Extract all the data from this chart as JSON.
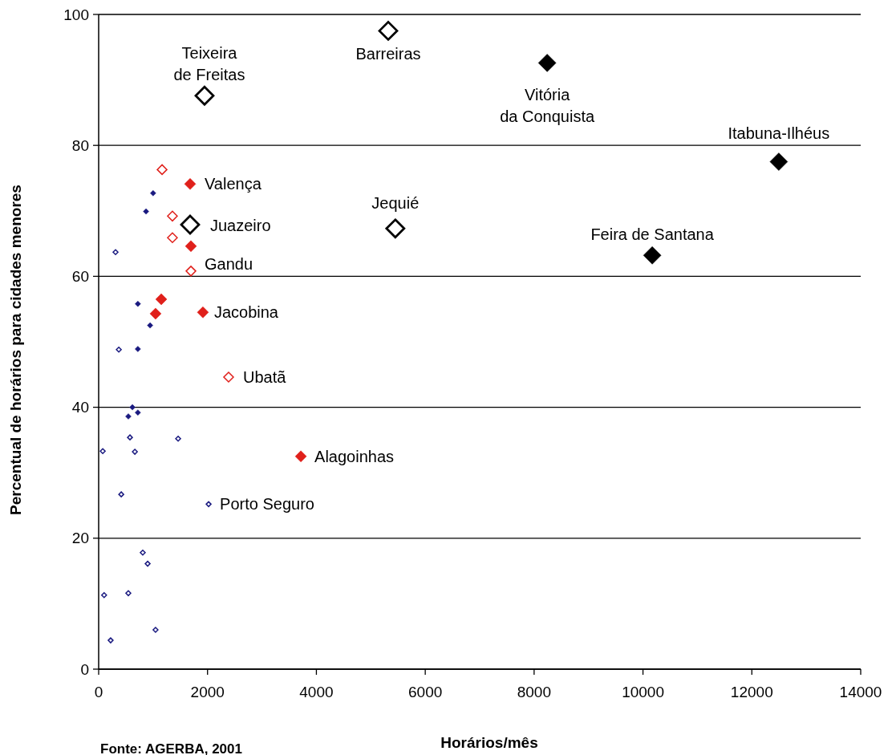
{
  "chart_data": {
    "type": "scatter",
    "xlabel": "Horários/mês",
    "ylabel": "Percentual de horários para cidades menores",
    "xlim": [
      0,
      14000
    ],
    "xticks": [
      0,
      2000,
      4000,
      6000,
      8000,
      10000,
      12000,
      14000
    ],
    "ylim": [
      0,
      100
    ],
    "yticks": [
      0,
      20,
      40,
      60,
      80,
      100
    ],
    "grid": "y",
    "marker": "diamond",
    "series": [
      {
        "color": "#000000",
        "x": [
          1945,
          5320,
          1680,
          5450
        ],
        "values": [
          87.6,
          97.5,
          67.9,
          67.3
        ]
      },
      {
        "color": "#000000",
        "x": [
          8240,
          12495,
          10170
        ],
        "values": [
          92.6,
          77.5,
          63.2
        ]
      },
      {
        "color": "#e0201b",
        "x": [
          1680,
          1695,
          1150,
          1045,
          1915,
          3715
        ],
        "values": [
          74.1,
          64.6,
          56.5,
          54.3,
          54.5,
          32.5
        ]
      },
      {
        "color": "#e0201b",
        "x": [
          1165,
          1355,
          1355,
          1695,
          2387
        ],
        "values": [
          76.3,
          69.2,
          65.9,
          60.8,
          44.6
        ]
      },
      {
        "color": "#1a1a80",
        "x": [
          1000,
          870,
          720,
          945,
          720,
          620,
          545,
          720
        ],
        "values": [
          72.7,
          69.9,
          55.8,
          52.5,
          48.9,
          40.0,
          38.6,
          39.2
        ]
      },
      {
        "color": "#1a1a80",
        "x": [
          310,
          370,
          575,
          1460,
          75,
          665,
          415,
          2020,
          810,
          900,
          100,
          545,
          220,
          1045
        ],
        "values": [
          63.7,
          48.8,
          35.4,
          35.2,
          33.3,
          33.2,
          26.7,
          25.2,
          17.8,
          16.1,
          11.3,
          11.6,
          4.4,
          6.0
        ]
      }
    ],
    "annotations": [
      {
        "text": "Teixeira\nde Freitas",
        "x": 1945,
        "y": 87.6
      },
      {
        "text": "Barreiras",
        "x": 5320,
        "y": 97.5
      },
      {
        "text": "Vitória\nda Conquista",
        "x": 8240,
        "y": 92.6
      },
      {
        "text": "Itabuna-Ilhéus",
        "x": 12495,
        "y": 77.5
      },
      {
        "text": "Valença",
        "x": 1680,
        "y": 74.1
      },
      {
        "text": "Juazeiro",
        "x": 1680,
        "y": 67.9
      },
      {
        "text": "Jequié",
        "x": 5450,
        "y": 67.3
      },
      {
        "text": "Feira de Santana",
        "x": 10170,
        "y": 63.2
      },
      {
        "text": "Gandu",
        "x": 1695,
        "y": 60.8
      },
      {
        "text": "Jacobina",
        "x": 1915,
        "y": 54.5
      },
      {
        "text": "Ubatã",
        "x": 2387,
        "y": 44.6
      },
      {
        "text": "Alagoinhas",
        "x": 3715,
        "y": 32.5
      },
      {
        "text": "Porto Seguro",
        "x": 2020,
        "y": 25.2
      },
      "Fonte: AGERBA, 2001"
    ]
  }
}
